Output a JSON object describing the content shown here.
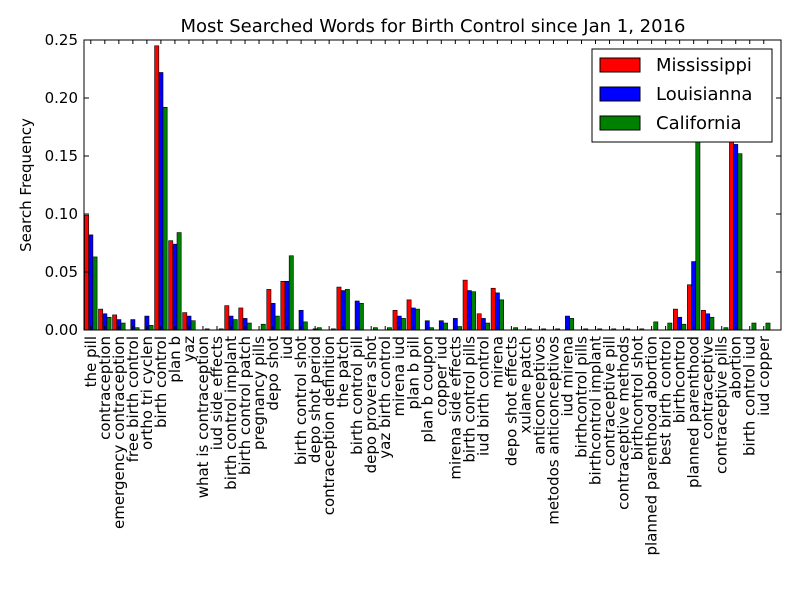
{
  "chart_data": {
    "type": "bar",
    "title": "Most Searched Words for Birth Control since Jan 1, 2016",
    "xlabel": "",
    "ylabel": "Search Frequency",
    "ylim": [
      0,
      0.25
    ],
    "yticks": [
      "0.00",
      "0.05",
      "0.10",
      "0.15",
      "0.20",
      "0.25"
    ],
    "grid": false,
    "legend_position": "top-right",
    "categories": [
      "the pill",
      "contraception",
      "emergency contraception",
      "free birth control",
      "ortho tri cyclen",
      "birth control",
      "plan b",
      "yaz",
      "what is contraception",
      "iud side effects",
      "birth control implant",
      "birth control patch",
      "pregnancy pills",
      "depo shot",
      "iud",
      "birth control shot",
      "depo shot period",
      "contraception definition",
      "the patch",
      "birth control pill",
      "depo provera shot",
      "yaz birth control",
      "mirena iud",
      "plan b pill",
      "plan b coupon",
      "copper iud",
      "mirena side effects",
      "birth control pills",
      "iud birth control",
      "mirena",
      "depo shot effects",
      "xulane patch",
      "anticonceptivos",
      "metodos anticonceptivos",
      "iud mirena",
      "birthcontrol pills",
      "birthcontrol implant",
      "contraceptive pill",
      "contraceptive methods",
      "birthcontrol shot",
      "planned parenthood abortion",
      "best birth control",
      "birthcontrol",
      "planned parenthood",
      "contraceptive",
      "contraceptive pills",
      "abortion",
      "birth control iud",
      "iud copper"
    ],
    "series": [
      {
        "name": "Mississippi",
        "color": "#ff0000",
        "values": [
          0.099,
          0.018,
          0.013,
          0.0,
          0.0,
          0.245,
          0.077,
          0.015,
          0.0,
          0.0,
          0.021,
          0.019,
          0.0,
          0.035,
          0.042,
          0.0,
          0.0,
          0.0,
          0.037,
          0.0,
          0.0,
          0.0,
          0.017,
          0.026,
          0.0,
          0.0,
          0.0,
          0.043,
          0.014,
          0.036,
          0.0,
          0.0,
          0.0,
          0.0,
          0.0,
          0.0,
          0.0,
          0.0,
          0.0,
          0.0,
          0.0,
          0.0,
          0.018,
          0.039,
          0.017,
          0.0,
          0.172,
          0.0,
          0.0
        ]
      },
      {
        "name": "Louisianna",
        "color": "#0000ff",
        "values": [
          0.082,
          0.014,
          0.009,
          0.009,
          0.012,
          0.222,
          0.074,
          0.012,
          0.0,
          0.0,
          0.012,
          0.01,
          0.0,
          0.023,
          0.042,
          0.017,
          0.001,
          0.0,
          0.034,
          0.025,
          0.0,
          0.0,
          0.012,
          0.019,
          0.008,
          0.008,
          0.01,
          0.034,
          0.01,
          0.032,
          0.0,
          0.0,
          0.0,
          0.0,
          0.012,
          0.0,
          0.0,
          0.0,
          0.0,
          0.0,
          0.0,
          0.0,
          0.011,
          0.059,
          0.014,
          0.0,
          0.16,
          0.0,
          0.0
        ]
      },
      {
        "name": "California",
        "color": "#008000",
        "values": [
          0.063,
          0.011,
          0.006,
          0.002,
          0.004,
          0.192,
          0.084,
          0.008,
          0.001,
          0.001,
          0.009,
          0.006,
          0.005,
          0.012,
          0.064,
          0.007,
          0.002,
          0.001,
          0.035,
          0.023,
          0.002,
          0.002,
          0.01,
          0.018,
          0.002,
          0.006,
          0.003,
          0.033,
          0.006,
          0.026,
          0.002,
          0.001,
          0.001,
          0.001,
          0.01,
          0.001,
          0.001,
          0.001,
          0.001,
          0.001,
          0.007,
          0.006,
          0.005,
          0.165,
          0.011,
          0.002,
          0.152,
          0.006,
          0.006
        ]
      }
    ]
  }
}
